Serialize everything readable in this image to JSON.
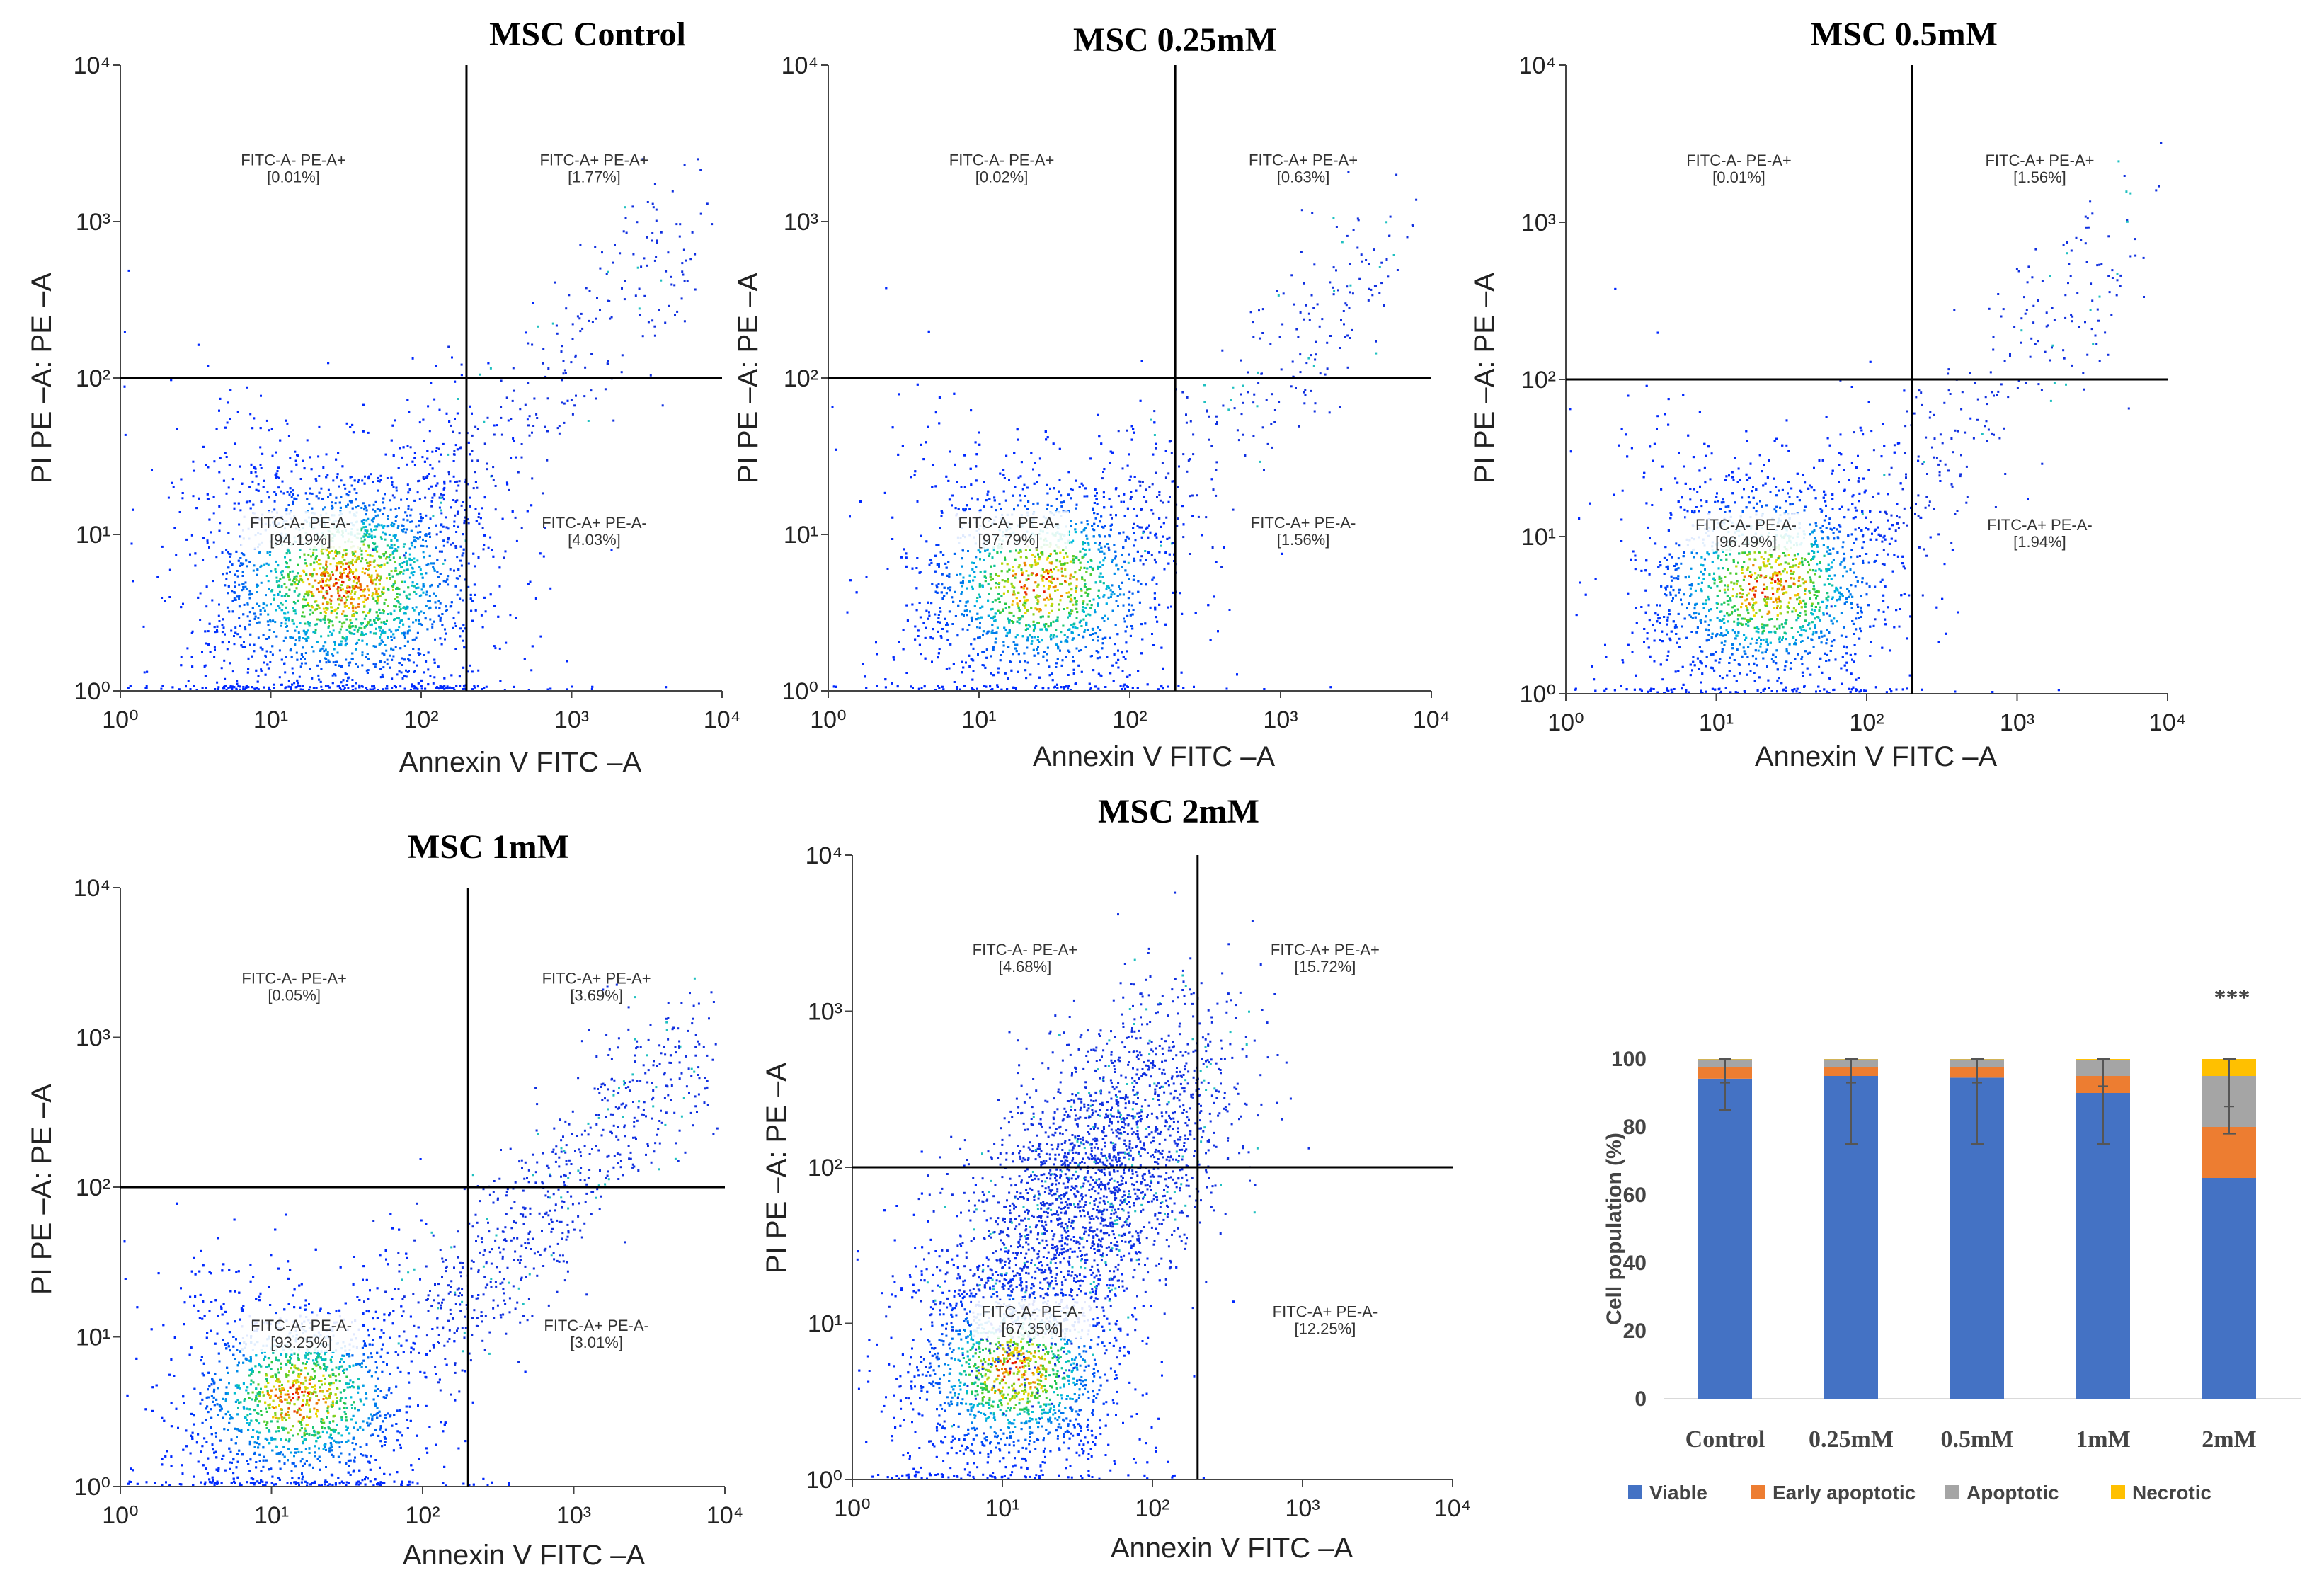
{
  "chart_data": [
    {
      "type": "scatter",
      "title": "MSC Control",
      "xlabel": "Annexin V FITC –A",
      "ylabel": "PI PE –A: PE –A",
      "xscale": "log",
      "yscale": "log",
      "xlim": [
        1,
        10000
      ],
      "ylim": [
        1,
        10000
      ],
      "x_ticks": [
        "10⁰",
        "10¹",
        "10²",
        "10³",
        "10⁴"
      ],
      "y_ticks": [
        "10⁰",
        "10¹",
        "10²",
        "10³",
        "10⁴"
      ],
      "gate": {
        "x": 200,
        "y": 100
      },
      "quadrants": [
        {
          "name": "FITC-A- PE-A+",
          "value": "[0.01%]"
        },
        {
          "name": "FITC-A+ PE-A+",
          "value": "[1.77%]"
        },
        {
          "name": "FITC-A- PE-A-",
          "value": "[94.19%]"
        },
        {
          "name": "FITC-A+ PE-A-",
          "value": "[4.03%]"
        }
      ],
      "population": {
        "center": [
          30,
          5
        ],
        "spread": [
          0.5,
          0.38
        ]
      }
    },
    {
      "type": "scatter",
      "title": "MSC 0.25mM",
      "xlabel": "Annexin V FITC –A",
      "ylabel": "PI PE –A: PE –A",
      "xscale": "log",
      "yscale": "log",
      "xlim": [
        1,
        10000
      ],
      "ylim": [
        1,
        10000
      ],
      "x_ticks": [
        "10⁰",
        "10¹",
        "10²",
        "10³",
        "10⁴"
      ],
      "y_ticks": [
        "10⁰",
        "10¹",
        "10²",
        "10³",
        "10⁴"
      ],
      "gate": {
        "x": 200,
        "y": 100
      },
      "quadrants": [
        {
          "name": "FITC-A- PE-A+",
          "value": "[0.02%]"
        },
        {
          "name": "FITC-A+ PE-A+",
          "value": "[0.63%]"
        },
        {
          "name": "FITC-A- PE-A-",
          "value": "[97.79%]"
        },
        {
          "name": "FITC-A+ PE-A-",
          "value": "[1.56%]"
        }
      ],
      "population": {
        "center": [
          25,
          5
        ],
        "spread": [
          0.45,
          0.35
        ]
      }
    },
    {
      "type": "scatter",
      "title": "MSC 0.5mM",
      "xlabel": "Annexin V FITC –A",
      "ylabel": "PI PE –A: PE –A",
      "xscale": "log",
      "yscale": "log",
      "xlim": [
        1,
        10000
      ],
      "ylim": [
        1,
        10000
      ],
      "x_ticks": [
        "10⁰",
        "10¹",
        "10²",
        "10³",
        "10⁴"
      ],
      "y_ticks": [
        "10⁰",
        "10¹",
        "10²",
        "10³",
        "10⁴"
      ],
      "gate": {
        "x": 200,
        "y": 100
      },
      "quadrants": [
        {
          "name": "FITC-A- PE-A+",
          "value": "[0.01%]"
        },
        {
          "name": "FITC-A+ PE-A+",
          "value": "[1.56%]"
        },
        {
          "name": "FITC-A- PE-A-",
          "value": "[96.49%]"
        },
        {
          "name": "FITC-A+ PE-A-",
          "value": "[1.94%]"
        }
      ],
      "population": {
        "center": [
          22,
          5
        ],
        "spread": [
          0.45,
          0.35
        ]
      }
    },
    {
      "type": "scatter",
      "title": "MSC 1mM",
      "xlabel": "Annexin V FITC –A",
      "ylabel": "PI PE –A: PE –A",
      "xscale": "log",
      "yscale": "log",
      "xlim": [
        1,
        10000
      ],
      "ylim": [
        1,
        10000
      ],
      "x_ticks": [
        "10⁰",
        "10¹",
        "10²",
        "10³",
        "10⁴"
      ],
      "y_ticks": [
        "10⁰",
        "10¹",
        "10²",
        "10³",
        "10⁴"
      ],
      "gate": {
        "x": 200,
        "y": 100
      },
      "quadrants": [
        {
          "name": "FITC-A- PE-A+",
          "value": "[0.05%]"
        },
        {
          "name": "FITC-A+ PE-A+",
          "value": "[3.69%]"
        },
        {
          "name": "FITC-A- PE-A-",
          "value": "[93.25%]"
        },
        {
          "name": "FITC-A+ PE-A-",
          "value": "[3.01%]"
        }
      ],
      "population": {
        "center": [
          15,
          4
        ],
        "spread": [
          0.42,
          0.33
        ]
      }
    },
    {
      "type": "scatter",
      "title": "MSC 2mM",
      "xlabel": "Annexin V FITC –A",
      "ylabel": "PI PE –A: PE –A",
      "xscale": "log",
      "yscale": "log",
      "xlim": [
        1,
        10000
      ],
      "ylim": [
        1,
        10000
      ],
      "x_ticks": [
        "10⁰",
        "10¹",
        "10²",
        "10³",
        "10⁴"
      ],
      "y_ticks": [
        "10⁰",
        "10¹",
        "10²",
        "10³",
        "10⁴"
      ],
      "gate": {
        "x": 200,
        "y": 100
      },
      "quadrants": [
        {
          "name": "FITC-A- PE-A+",
          "value": "[4.68%]"
        },
        {
          "name": "FITC-A+ PE-A+",
          "value": "[15.72%]"
        },
        {
          "name": "FITC-A- PE-A-",
          "value": "[67.35%]"
        },
        {
          "name": "FITC-A+ PE-A-",
          "value": "[12.25%]"
        }
      ],
      "population": {
        "center": [
          12,
          5
        ],
        "spread": [
          0.38,
          0.32
        ]
      }
    },
    {
      "type": "bar",
      "stacked": true,
      "categories": [
        "Control",
        "0.25mM",
        "0.5mM",
        "1mM",
        "2mM"
      ],
      "series": [
        {
          "name": "Viable",
          "color": "#4472C4",
          "values": [
            94.2,
            95,
            94.5,
            90,
            65
          ]
        },
        {
          "name": "Early apoptotic",
          "color": "#ED7D31",
          "values": [
            3.5,
            2.5,
            3,
            5,
            15
          ]
        },
        {
          "name": "Apoptotic",
          "color": "#A5A5A5",
          "values": [
            2.2,
            2.4,
            2.4,
            4.8,
            15
          ]
        },
        {
          "name": "Necrotic",
          "color": "#FFC000",
          "values": [
            0.1,
            0.1,
            0.1,
            0.2,
            5
          ]
        }
      ],
      "error_bars": [
        {
          "center": 93,
          "low": 85,
          "high": 100
        },
        {
          "center": 93,
          "low": 75,
          "high": 100
        },
        {
          "center": 93,
          "low": 75,
          "high": 100
        },
        {
          "center": 92,
          "low": 75,
          "high": 100
        },
        {
          "center": 86,
          "low": 78,
          "high": 100
        }
      ],
      "annotation": {
        "category": "2mM",
        "text": "***"
      },
      "ylabel": "Cell population (%)",
      "ylim": [
        0,
        100
      ],
      "y_ticks": [
        0,
        20,
        40,
        60,
        80,
        100
      ],
      "legend_position": "bottom"
    }
  ]
}
